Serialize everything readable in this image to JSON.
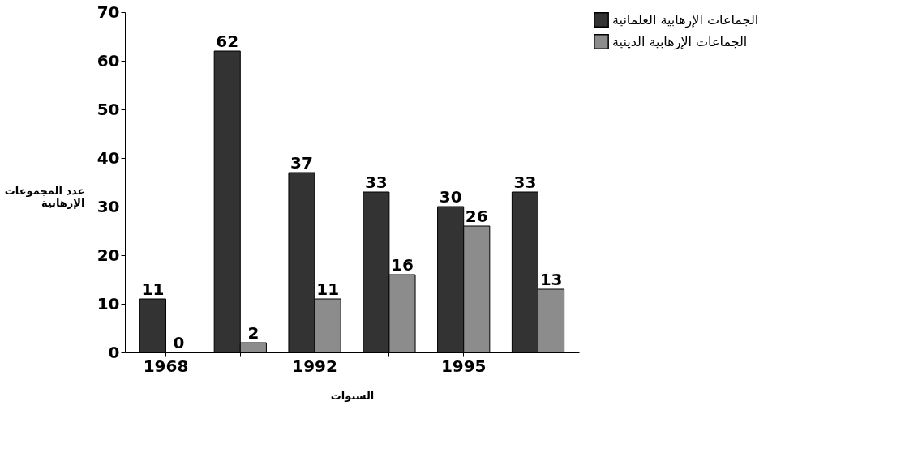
{
  "chart_data": {
    "type": "bar",
    "xlabel": "السنوات",
    "ylabel": [
      "عدد المجموعات",
      "الإرهابية"
    ],
    "categories": [
      "1968",
      null,
      "1992",
      null,
      "1995",
      null
    ],
    "series": [
      {
        "name": "الجماعات الإرهابية العلمانية",
        "color": "#333333",
        "values": [
          11,
          62,
          37,
          33,
          30,
          33
        ]
      },
      {
        "name": "الجماعات الإرهابية الدينية",
        "color": "#8c8c8c",
        "values": [
          0,
          2,
          11,
          16,
          26,
          13
        ]
      }
    ],
    "ylim": [
      0,
      70
    ],
    "yticks": [
      0,
      10,
      20,
      30,
      40,
      50,
      60,
      70
    ],
    "data_labels": true,
    "grid": false,
    "legend": "right"
  }
}
